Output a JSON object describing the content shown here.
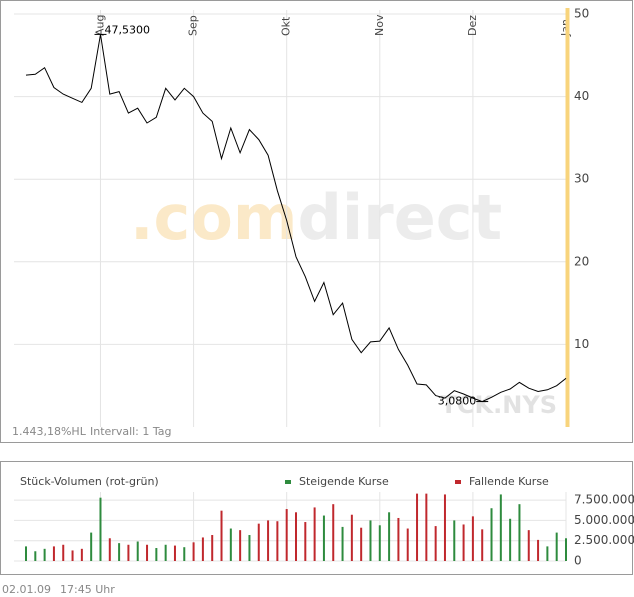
{
  "chart_data": [
    {
      "type": "line",
      "ticker": "TCK.NYS",
      "watermark": [
        ".com",
        "direct"
      ],
      "footer": [
        "1.443,18%HL",
        "Intervall: 1 Tag"
      ],
      "categories": [
        null,
        null,
        null,
        null,
        null,
        null,
        null,
        null,
        "Aug",
        null,
        null,
        null,
        null,
        null,
        null,
        null,
        null,
        null,
        "Sep",
        null,
        null,
        null,
        null,
        null,
        null,
        null,
        null,
        null,
        "Okt",
        null,
        null,
        null,
        null,
        null,
        null,
        null,
        null,
        null,
        "Nov",
        null,
        null,
        null,
        null,
        null,
        null,
        null,
        null,
        null,
        "Dez",
        null,
        null,
        null,
        null,
        null,
        null,
        null,
        null,
        null,
        "Jan"
      ],
      "values": [
        42.6,
        42.7,
        43.5,
        41.1,
        40.3,
        39.8,
        39.3,
        41.0,
        47.53,
        40.3,
        40.6,
        38.0,
        38.6,
        36.8,
        37.5,
        41.0,
        39.6,
        41.0,
        40.0,
        38.0,
        37.0,
        32.5,
        36.2,
        33.2,
        36.0,
        34.8,
        32.9,
        28.6,
        25.0,
        20.6,
        18.2,
        15.2,
        17.5,
        13.6,
        15.0,
        10.6,
        9.0,
        10.3,
        10.4,
        12.0,
        9.4,
        7.5,
        5.2,
        5.1,
        3.8,
        3.5,
        4.4,
        4.0,
        3.5,
        3.08,
        3.6,
        4.2,
        4.6,
        5.4,
        4.7,
        4.3,
        4.5,
        5.0,
        5.9
      ],
      "value_labels": [
        null,
        null,
        null,
        null,
        null,
        null,
        null,
        null,
        "47,5300",
        null,
        null,
        null,
        null,
        null,
        null,
        null,
        null,
        null,
        null,
        null,
        null,
        null,
        null,
        null,
        null,
        null,
        null,
        null,
        null,
        null,
        null,
        null,
        null,
        null,
        null,
        null,
        null,
        null,
        null,
        null,
        null,
        null,
        null,
        null,
        null,
        null,
        null,
        null,
        null,
        "3,0800",
        null,
        null,
        null,
        null,
        null,
        null,
        null,
        null,
        null
      ],
      "color": "#000000",
      "ylim": [
        0,
        50
      ],
      "yticks": [
        10,
        20,
        30,
        40,
        50
      ],
      "grid": true
    },
    {
      "type": "bar",
      "title": "Stück-Volumen (rot-grün)",
      "series": [
        {
          "name": "Steigende Kurse",
          "color": "#2e8b3e",
          "values": [
            1800000,
            1200000,
            1500000,
            null,
            null,
            null,
            null,
            3500000,
            7800000,
            null,
            2200000,
            null,
            2400000,
            null,
            1600000,
            2000000,
            null,
            1700000,
            null,
            null,
            null,
            null,
            4000000,
            null,
            3200000,
            null,
            null,
            null,
            null,
            null,
            null,
            null,
            5600000,
            null,
            4200000,
            null,
            null,
            5000000,
            4400000,
            6000000,
            null,
            null,
            null,
            null,
            null,
            null,
            5000000,
            null,
            null,
            null,
            6500000,
            8200000,
            5200000,
            7000000,
            null,
            null,
            1800000,
            3500000,
            2800000
          ]
        },
        {
          "name": "Fallende Kurse",
          "color": "#c0282d",
          "values": [
            null,
            null,
            null,
            1800000,
            2000000,
            1300000,
            1500000,
            null,
            null,
            2800000,
            null,
            2000000,
            null,
            2000000,
            null,
            null,
            1900000,
            null,
            2300000,
            2900000,
            3200000,
            6200000,
            null,
            3800000,
            null,
            4600000,
            5000000,
            4900000,
            6400000,
            6000000,
            4800000,
            6600000,
            null,
            7000000,
            null,
            5700000,
            4100000,
            null,
            null,
            null,
            5300000,
            4000000,
            8300000,
            8300000,
            4300000,
            8200000,
            null,
            4500000,
            5500000,
            3900000,
            null,
            null,
            null,
            null,
            3800000,
            2600000,
            null,
            null,
            null
          ]
        }
      ],
      "ylim": [
        0,
        8500000
      ],
      "yticks": [
        {
          "value": 7500000,
          "label": "7.500.000"
        },
        {
          "value": 5000000,
          "label": "5.000.000"
        },
        {
          "value": 2500000,
          "label": "2.500.000"
        },
        0
      ],
      "grid": true
    }
  ],
  "timestamp": [
    "02.01.09",
    "17:45 Uhr"
  ]
}
